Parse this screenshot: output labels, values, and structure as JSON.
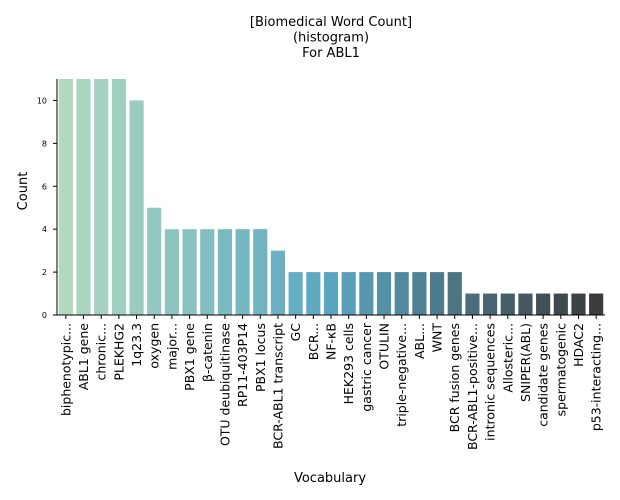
{
  "chart_data": {
    "type": "bar",
    "title_lines": [
      "[Biomedical Word Count]",
      "(histogram)",
      "For ABL1"
    ],
    "xlabel": "Vocabulary",
    "ylabel": "Count",
    "ylim": [
      0,
      11
    ],
    "yticks": [
      0,
      2,
      4,
      6,
      8,
      10
    ],
    "grid": false,
    "palette": {
      "start": "#b0d9c0",
      "mid": "#5aa6c2",
      "end": "#3b3b3b"
    },
    "categories": [
      "biphenotypic...",
      "ABL1 gene",
      "chronic...",
      "PLEKHG2",
      "1q23.3",
      "oxygen",
      "major...",
      "PBX1 gene",
      "β-catenin",
      "OTU deubiquitinase",
      "RP11-403P14",
      "PBX1 locus",
      "BCR-ABL1 transcript",
      "GC",
      "BCR...",
      "NF-κB",
      "HEK293 cells",
      "gastric cancer",
      "OTULIN",
      "triple-negative...",
      "ABL...",
      "WNT",
      "BCR fusion genes",
      "BCR-ABL1-positive...",
      "intronic sequences",
      "Allosteric...",
      "SNIPER(ABL)",
      "candidate genes",
      "spermatogenic",
      "HDAC2",
      "p53-interacting..."
    ],
    "values": [
      11,
      11,
      11,
      11,
      10,
      5,
      4,
      4,
      4,
      4,
      4,
      4,
      3,
      2,
      2,
      2,
      2,
      2,
      2,
      2,
      2,
      2,
      2,
      1,
      1,
      1,
      1,
      1,
      1,
      1,
      1
    ]
  }
}
